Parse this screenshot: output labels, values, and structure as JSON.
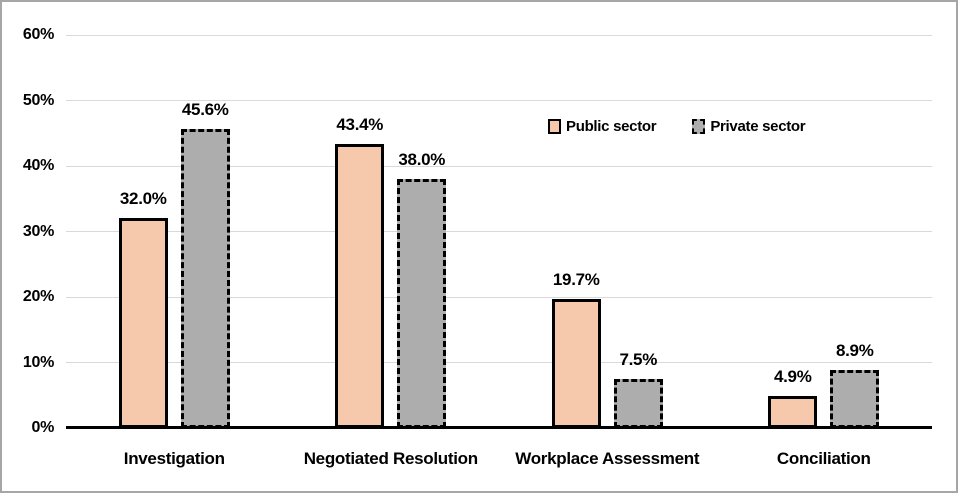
{
  "chart_data": {
    "type": "bar",
    "title": "",
    "xlabel": "",
    "ylabel": "",
    "categories": [
      "Investigation",
      "Negotiated Resolution",
      "Workplace Assessment",
      "Conciliation"
    ],
    "series": [
      {
        "name": "Public sector",
        "values": [
          32.0,
          43.4,
          19.7,
          4.9
        ],
        "labels": [
          "32.0%",
          "43.4%",
          "19.7%",
          "4.9%"
        ],
        "fill": "#F7C9AC",
        "border": "#000000",
        "border_style": "solid"
      },
      {
        "name": "Private sector",
        "values": [
          45.6,
          38.0,
          7.5,
          8.9
        ],
        "labels": [
          "45.6%",
          "38.0%",
          "7.5%",
          "8.9%"
        ],
        "fill": "#ADADAD",
        "border": "#000000",
        "border_style": "dashed"
      }
    ],
    "ylim": [
      0,
      60
    ],
    "yticks": [
      {
        "value": 0,
        "label": "0%"
      },
      {
        "value": 10,
        "label": "10%"
      },
      {
        "value": 20,
        "label": "20%"
      },
      {
        "value": 30,
        "label": "30%"
      },
      {
        "value": 40,
        "label": "40%"
      },
      {
        "value": 50,
        "label": "50%"
      },
      {
        "value": 60,
        "label": "60%"
      }
    ],
    "grid": true,
    "legend_position": "inside-upper-center-right"
  },
  "colors": {
    "gridline": "#D9D9D9",
    "axis_line": "#000000",
    "frame_border": "#A6A6A6",
    "background": "#FFFFFF",
    "text": "#000000"
  }
}
